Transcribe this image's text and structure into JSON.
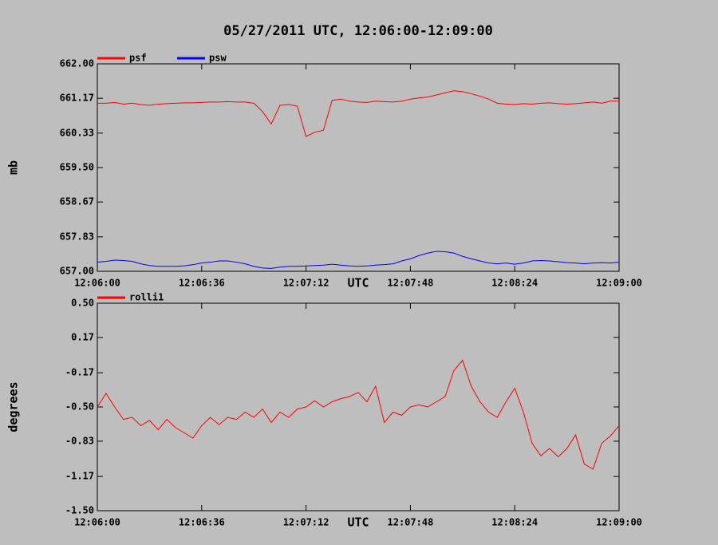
{
  "chart_data": [
    {
      "type": "line",
      "title": "05/27/2011  UTC, 12:06:00-12:09:00",
      "xlabel": "UTC",
      "ylabel": "mb",
      "x": [
        "12:06:00",
        "12:06:03",
        "12:06:06",
        "12:06:09",
        "12:06:12",
        "12:06:15",
        "12:06:18",
        "12:06:21",
        "12:06:24",
        "12:06:27",
        "12:06:30",
        "12:06:33",
        "12:06:36",
        "12:06:39",
        "12:06:42",
        "12:06:45",
        "12:06:48",
        "12:06:51",
        "12:06:54",
        "12:06:57",
        "12:07:00",
        "12:07:03",
        "12:07:06",
        "12:07:09",
        "12:07:12",
        "12:07:15",
        "12:07:18",
        "12:07:21",
        "12:07:24",
        "12:07:27",
        "12:07:30",
        "12:07:33",
        "12:07:36",
        "12:07:39",
        "12:07:42",
        "12:07:45",
        "12:07:48",
        "12:07:51",
        "12:07:54",
        "12:07:57",
        "12:08:00",
        "12:08:03",
        "12:08:06",
        "12:08:09",
        "12:08:12",
        "12:08:15",
        "12:08:18",
        "12:08:21",
        "12:08:24",
        "12:08:27",
        "12:08:30",
        "12:08:33",
        "12:08:36",
        "12:08:39",
        "12:08:42",
        "12:08:45",
        "12:08:48",
        "12:08:51",
        "12:08:54",
        "12:08:57",
        "12:09:00"
      ],
      "series": [
        {
          "name": "psf",
          "color": "#ff0000",
          "values": [
            661.05,
            661.05,
            661.07,
            661.03,
            661.05,
            661.02,
            661.0,
            661.03,
            661.04,
            661.05,
            661.06,
            661.06,
            661.07,
            661.08,
            661.08,
            661.09,
            661.08,
            661.08,
            661.05,
            660.85,
            660.55,
            661.0,
            661.02,
            660.98,
            660.25,
            660.35,
            660.4,
            661.12,
            661.15,
            661.1,
            661.08,
            661.07,
            661.1,
            661.09,
            661.08,
            661.1,
            661.15,
            661.18,
            661.2,
            661.25,
            661.3,
            661.35,
            661.33,
            661.28,
            661.22,
            661.15,
            661.05,
            661.03,
            661.02,
            661.04,
            661.03,
            661.05,
            661.06,
            661.04,
            661.03,
            661.04,
            661.06,
            661.08,
            661.05,
            661.1,
            661.1
          ]
        },
        {
          "name": "psw",
          "color": "#0000ff",
          "values": [
            657.22,
            657.24,
            657.27,
            657.26,
            657.24,
            657.18,
            657.14,
            657.12,
            657.12,
            657.12,
            657.13,
            657.16,
            657.2,
            657.22,
            657.25,
            657.25,
            657.22,
            657.18,
            657.12,
            657.08,
            657.07,
            657.1,
            657.12,
            657.12,
            657.13,
            657.14,
            657.15,
            657.17,
            657.15,
            657.13,
            657.12,
            657.13,
            657.15,
            657.16,
            657.18,
            657.25,
            657.3,
            657.38,
            657.44,
            657.48,
            657.47,
            657.44,
            657.36,
            657.3,
            657.25,
            657.2,
            657.18,
            657.2,
            657.17,
            657.2,
            657.25,
            657.26,
            657.25,
            657.23,
            657.21,
            657.2,
            657.18,
            657.2,
            657.21,
            657.2,
            657.22
          ]
        }
      ],
      "xlim": [
        "12:06:00",
        "12:09:00"
      ],
      "xticks": [
        "12:06:00",
        "12:06:36",
        "12:07:12",
        "12:07:48",
        "12:08:24",
        "12:09:00"
      ],
      "ylim": [
        657,
        662
      ],
      "yticks": [
        {
          "value": 657,
          "label": "657.00"
        },
        {
          "value": 657.83,
          "label": "657.83"
        },
        {
          "value": 658.67,
          "label": "658.67"
        },
        {
          "value": 659.5,
          "label": "659.50"
        },
        {
          "value": 660.33,
          "label": "660.33"
        },
        {
          "value": 661.17,
          "label": "661.17"
        },
        {
          "value": 662,
          "label": "662.00"
        }
      ],
      "grid": false,
      "legend": "top-left"
    },
    {
      "type": "line",
      "xlabel": "UTC",
      "ylabel": "degrees",
      "x": [
        "12:06:00",
        "12:06:03",
        "12:06:06",
        "12:06:09",
        "12:06:12",
        "12:06:15",
        "12:06:18",
        "12:06:21",
        "12:06:24",
        "12:06:27",
        "12:06:30",
        "12:06:33",
        "12:06:36",
        "12:06:39",
        "12:06:42",
        "12:06:45",
        "12:06:48",
        "12:06:51",
        "12:06:54",
        "12:06:57",
        "12:07:00",
        "12:07:03",
        "12:07:06",
        "12:07:09",
        "12:07:12",
        "12:07:15",
        "12:07:18",
        "12:07:21",
        "12:07:24",
        "12:07:27",
        "12:07:30",
        "12:07:33",
        "12:07:36",
        "12:07:39",
        "12:07:42",
        "12:07:45",
        "12:07:48",
        "12:07:51",
        "12:07:54",
        "12:07:57",
        "12:08:00",
        "12:08:03",
        "12:08:06",
        "12:08:09",
        "12:08:12",
        "12:08:15",
        "12:08:18",
        "12:08:21",
        "12:08:24",
        "12:08:27",
        "12:08:30",
        "12:08:33",
        "12:08:36",
        "12:08:39",
        "12:08:42",
        "12:08:45",
        "12:08:48",
        "12:08:51",
        "12:08:54",
        "12:08:57",
        "12:09:00"
      ],
      "series": [
        {
          "name": "rolli1",
          "color": "#ff0000",
          "values": [
            -0.5,
            -0.37,
            -0.5,
            -0.62,
            -0.6,
            -0.68,
            -0.63,
            -0.72,
            -0.62,
            -0.7,
            -0.75,
            -0.8,
            -0.68,
            -0.6,
            -0.67,
            -0.6,
            -0.62,
            -0.55,
            -0.6,
            -0.52,
            -0.65,
            -0.55,
            -0.6,
            -0.52,
            -0.5,
            -0.44,
            -0.5,
            -0.45,
            -0.42,
            -0.4,
            -0.36,
            -0.45,
            -0.3,
            -0.65,
            -0.55,
            -0.58,
            -0.5,
            -0.48,
            -0.5,
            -0.45,
            -0.4,
            -0.15,
            -0.05,
            -0.3,
            -0.45,
            -0.55,
            -0.6,
            -0.45,
            -0.32,
            -0.55,
            -0.85,
            -0.97,
            -0.9,
            -0.98,
            -0.9,
            -0.77,
            -1.05,
            -1.1,
            -0.85,
            -0.78,
            -0.68
          ]
        }
      ],
      "xlim": [
        "12:06:00",
        "12:09:00"
      ],
      "xticks": [
        "12:06:00",
        "12:06:36",
        "12:07:12",
        "12:07:48",
        "12:08:24",
        "12:09:00"
      ],
      "ylim": [
        -1.5,
        0.5
      ],
      "yticks": [
        {
          "value": -1.5,
          "label": "-1.50"
        },
        {
          "value": -1.17,
          "label": "-1.17"
        },
        {
          "value": -0.83,
          "label": "-0.83"
        },
        {
          "value": -0.5,
          "label": "-0.50"
        },
        {
          "value": -0.17,
          "label": "-0.17"
        },
        {
          "value": 0.17,
          "label": "0.17"
        },
        {
          "value": 0.5,
          "label": "0.50"
        }
      ],
      "grid": false,
      "legend": "top-left"
    }
  ]
}
